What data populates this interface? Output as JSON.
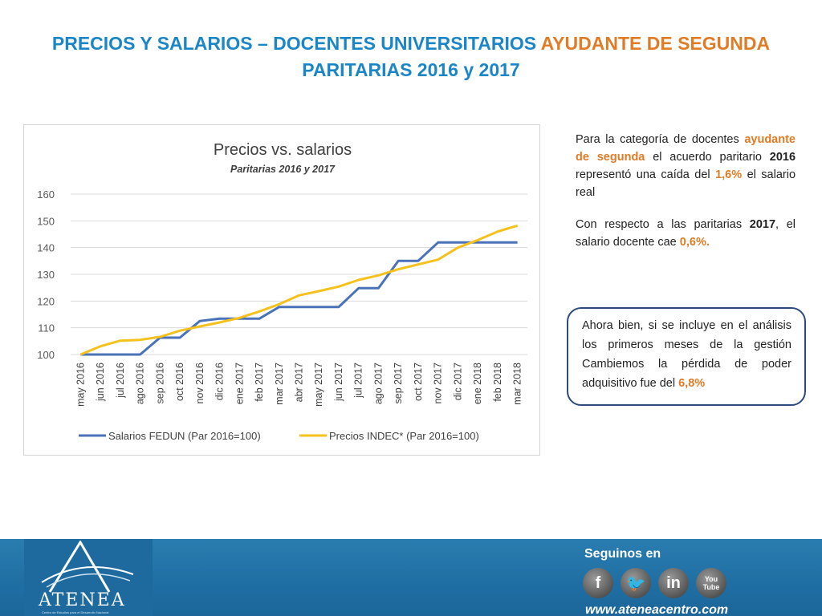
{
  "title": {
    "line1_blue": "PRECIOS Y SALARIOS – DOCENTES UNIVERSITARIOS",
    "line1_orange": "AYUDANTE DE SEGUNDA",
    "line2": "PARITARIAS 2016 y 2017"
  },
  "colors": {
    "title_blue": "#1a86c8",
    "accent_orange": "#e07b26",
    "salarios_line": "#4a72b8",
    "precios_line": "#f4c11d",
    "footer_blue": "#1f6ea3"
  },
  "chart_data": {
    "type": "line",
    "title": "Precios vs. salarios",
    "subtitle": "Paritarias 2016 y 2017",
    "categories": [
      "may 2016",
      "jun 2016",
      "jul 2016",
      "ago 2016",
      "sep 2016",
      "oct 2016",
      "nov 2016",
      "dic 2016",
      "ene 2017",
      "feb 2017",
      "mar 2017",
      "abr 2017",
      "may 2017",
      "jun 2017",
      "jul 2017",
      "ago 2017",
      "sep 2017",
      "oct 2017",
      "nov 2017",
      "dic 2017",
      "ene 2018",
      "feb 2018",
      "mar 2018"
    ],
    "ylim": [
      100,
      160
    ],
    "yticks": [
      100,
      110,
      120,
      130,
      140,
      150,
      160
    ],
    "grid": true,
    "legend": "bottom",
    "series": [
      {
        "name": "Salarios FEDUN (Par 2016=100)",
        "color": "#4a72b8",
        "values": [
          100,
          100,
          100,
          100,
          106.3,
          106.3,
          112.5,
          113.4,
          113.4,
          113.4,
          117.8,
          117.8,
          117.8,
          117.8,
          124.8,
          124.8,
          135,
          135,
          141.9,
          141.9,
          141.9,
          141.9,
          141.9
        ]
      },
      {
        "name": "Precios INDEC* (Par 2016=100)",
        "color": "#f4c11d",
        "values": [
          100,
          103.1,
          105.2,
          105.5,
          106.6,
          108.9,
          110.5,
          112,
          113.7,
          116.1,
          118.8,
          122.1,
          123.7,
          125.4,
          127.9,
          129.6,
          131.9,
          133.7,
          135.5,
          140,
          142.8,
          146,
          148.2
        ]
      }
    ]
  },
  "side": {
    "p1": {
      "a": "Para la categoría de docentes ",
      "b": "ayudante de segunda",
      "c": " el acuerdo paritario ",
      "d": "2016",
      "e": " representó una caída del ",
      "f": "1,6%",
      "g": " el salario real"
    },
    "p2": {
      "a": "Con respecto a las paritarias ",
      "b": "2017",
      "c": ", el salario docente cae ",
      "d": "0,6%."
    },
    "callout": {
      "a": "Ahora bien, si se incluye en el análisis los primeros meses de la gestión Cambiemos la pérdida de poder adquisitivo fue del ",
      "b": "6,8%"
    }
  },
  "footer": {
    "brand": "ATENEA",
    "brand_sub": "Centro de Estudios para el Desarrollo Nacional",
    "social_title": "Seguinos en",
    "social": [
      {
        "icon": "facebook-icon",
        "glyph": "f"
      },
      {
        "icon": "twitter-icon",
        "glyph": "🐦"
      },
      {
        "icon": "linkedin-icon",
        "glyph": "in"
      },
      {
        "icon": "youtube-icon",
        "glyph": "You Tube"
      }
    ],
    "site": "www.ateneacentro.com"
  }
}
